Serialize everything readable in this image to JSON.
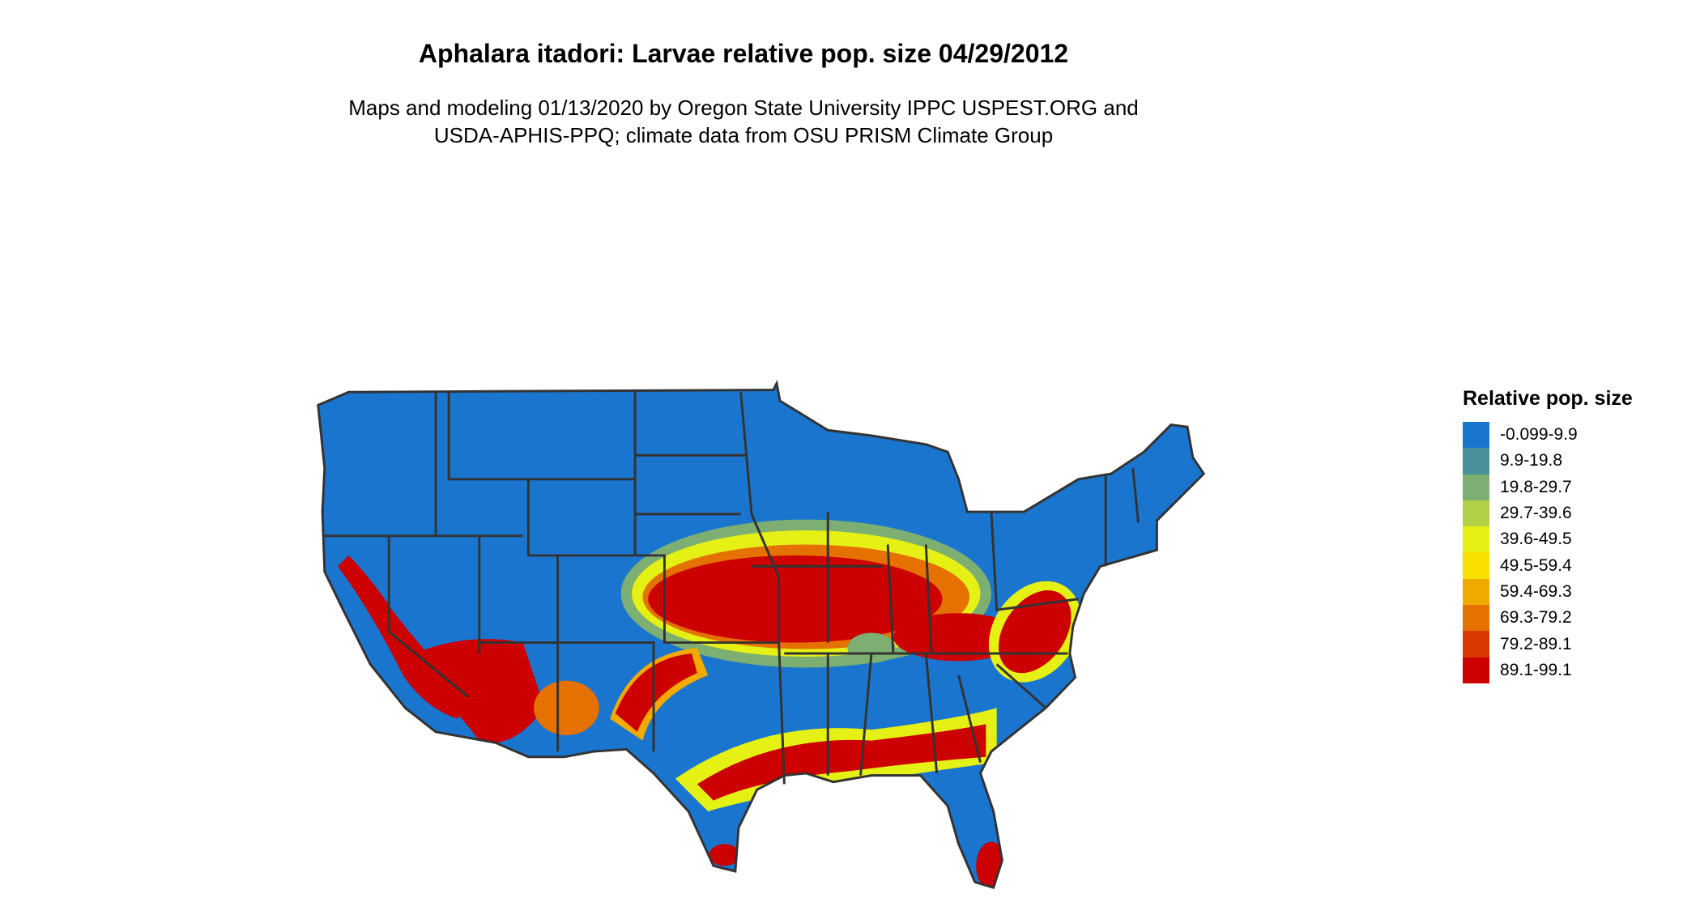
{
  "title": "Aphalara itadori: Larvae relative pop. size 04/29/2012",
  "subtitle_line1": "Maps and modeling 01/13/2020 by Oregon State University IPPC USPEST.ORG and",
  "subtitle_line2": "USDA-APHIS-PPQ; climate data from OSU PRISM Climate Group",
  "legend": {
    "title": "Relative pop. size",
    "items": [
      {
        "label": "-0.099-9.9",
        "color": "#1A75CF"
      },
      {
        "label": "9.9-19.8",
        "color": "#4A919E"
      },
      {
        "label": "19.8-29.7",
        "color": "#7DAF72"
      },
      {
        "label": "29.7-39.6",
        "color": "#B2D045"
      },
      {
        "label": "39.6-49.5",
        "color": "#E5F014"
      },
      {
        "label": "49.5-59.4",
        "color": "#F9E000"
      },
      {
        "label": "59.4-69.3",
        "color": "#F0AA00"
      },
      {
        "label": "69.3-79.2",
        "color": "#E47100"
      },
      {
        "label": "79.2-89.1",
        "color": "#DA3900"
      },
      {
        "label": "89.1-99.1",
        "color": "#CC0000"
      }
    ]
  },
  "map": {
    "region": "Contiguous United States",
    "border_color": "#333333",
    "background_class_color": "#1A75CF"
  }
}
